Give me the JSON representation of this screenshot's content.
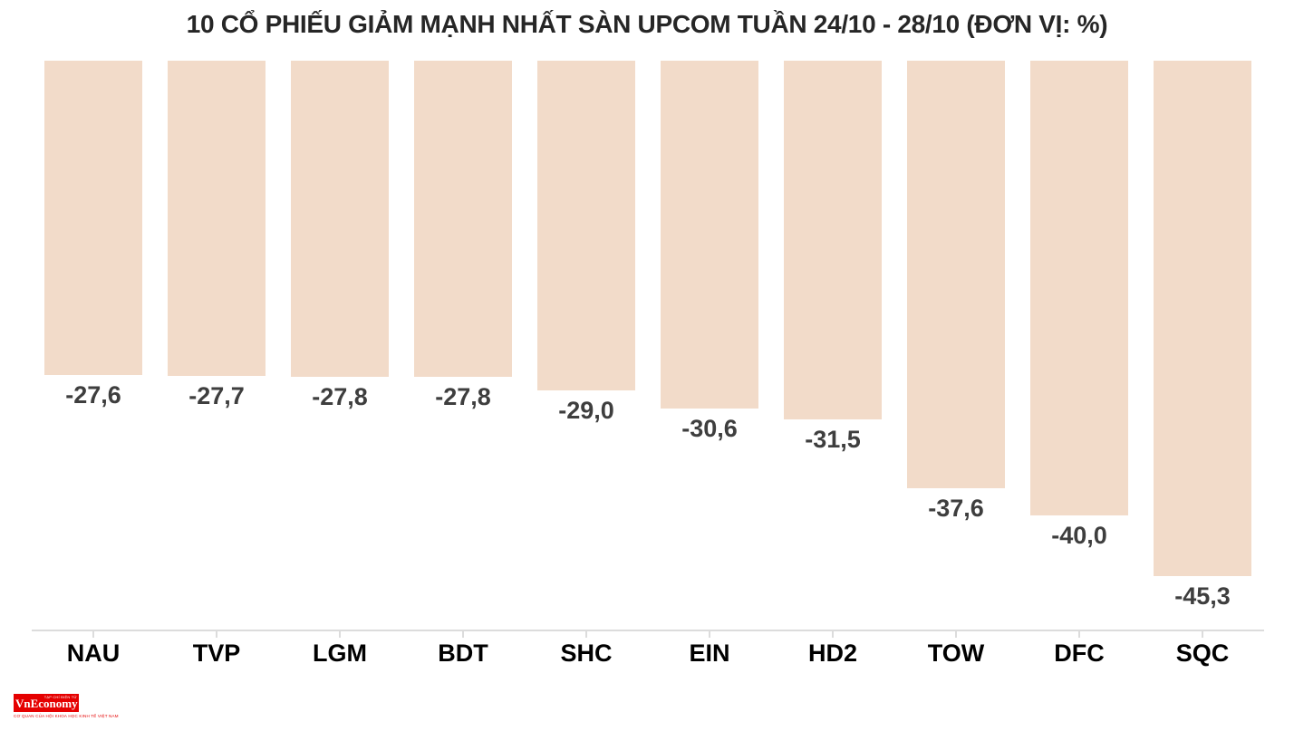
{
  "chart_data": {
    "type": "bar",
    "title": "10 CỔ PHIẾU GIẢM MẠNH NHẤT SÀN UPCOM TUẦN 24/10 - 28/10 (ĐƠN VỊ: %)",
    "categories": [
      "NAU",
      "TVP",
      "LGM",
      "BDT",
      "SHC",
      "EIN",
      "HD2",
      "TOW",
      "DFC",
      "SQC"
    ],
    "values": [
      -27.6,
      -27.7,
      -27.8,
      -27.8,
      -29.0,
      -30.6,
      -31.5,
      -37.6,
      -40.0,
      -45.3
    ],
    "value_labels": [
      "-27,6",
      "-27,7",
      "-27,8",
      "-27,8",
      "-29,0",
      "-30,6",
      "-31,5",
      "-37,6",
      "-40,0",
      "-45,3"
    ],
    "xlabel": "",
    "ylabel": "",
    "ylim": [
      -50,
      0
    ],
    "grid": false,
    "legend": "none",
    "bar_color": "#F2DBC9",
    "value_label_color": "#3E3E3E",
    "category_label_color": "#000000",
    "axis_color": "#DCDCDC",
    "orientation": "vertical",
    "bars_hang_from_zero_at_top": true
  },
  "footer": {
    "logo": {
      "wordmark": "VnEconomy",
      "small_top_text": "TẠP CHÍ ĐIỆN TỬ",
      "tagline": "CƠ QUAN CỦA HỘI KHOA HỌC KINH TẾ VIỆT NAM",
      "bg_color": "#E50000"
    }
  }
}
